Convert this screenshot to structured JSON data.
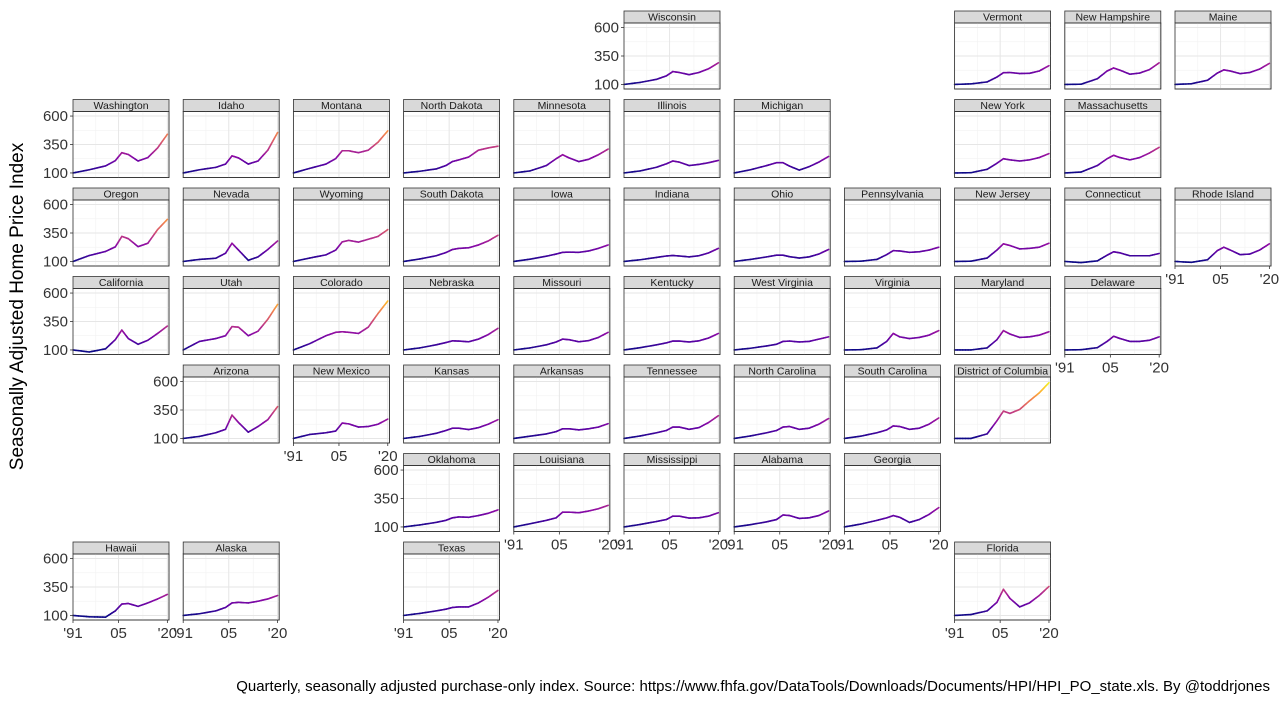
{
  "chart_data": {
    "type": "line",
    "layout": "geofacet small multiples by US state",
    "ylabel": "Seasonally Adjusted Home Price Index",
    "caption": "Quarterly, seasonally adjusted purchase-only index. Source: https://www.fhfa.gov/DataTools/Downloads/Documents/HPI/HPI_PO_state.xls. By @toddrjones",
    "x_ticks": [
      "'91",
      "05",
      "'20"
    ],
    "x_tick_values": [
      1991,
      2005,
      2020
    ],
    "y_ticks": [
      "100",
      "350",
      "600"
    ],
    "y_tick_values": [
      100,
      350,
      600
    ],
    "xlim": [
      1991,
      2020.5
    ],
    "ylim": [
      60,
      640
    ],
    "color_scale": "plasma (line colored by index value)",
    "color_range": [
      100,
      600
    ],
    "colors": {
      "low": "#0d0887",
      "mid": "#cc4778",
      "high": "#f0f921"
    },
    "key_years": [
      1991,
      1996,
      2001,
      2004,
      2006,
      2008,
      2011,
      2014,
      2017,
      2020
    ],
    "series": [
      {
        "name": "Wisconsin",
        "row": 0,
        "col": 5,
        "values": [
          100,
          118,
          145,
          175,
          213,
          205,
          186,
          205,
          238,
          290
        ]
      },
      {
        "name": "Vermont",
        "row": 0,
        "col": 8,
        "values": [
          100,
          105,
          122,
          165,
          203,
          205,
          196,
          198,
          218,
          265
        ]
      },
      {
        "name": "New Hampshire",
        "row": 0,
        "col": 9,
        "values": [
          100,
          102,
          150,
          218,
          245,
          225,
          190,
          200,
          230,
          290
        ]
      },
      {
        "name": "Maine",
        "row": 0,
        "col": 10,
        "values": [
          100,
          106,
          137,
          200,
          228,
          218,
          195,
          205,
          235,
          285
        ]
      },
      {
        "name": "Washington",
        "row": 1,
        "col": 0,
        "values": [
          100,
          128,
          162,
          208,
          278,
          262,
          205,
          235,
          320,
          440
        ]
      },
      {
        "name": "Idaho",
        "row": 1,
        "col": 1,
        "values": [
          100,
          128,
          149,
          178,
          250,
          232,
          178,
          205,
          300,
          455
        ]
      },
      {
        "name": "Montana",
        "row": 1,
        "col": 2,
        "values": [
          100,
          140,
          178,
          226,
          295,
          295,
          278,
          300,
          370,
          470
        ]
      },
      {
        "name": "North Dakota",
        "row": 1,
        "col": 3,
        "values": [
          100,
          115,
          135,
          165,
          200,
          215,
          240,
          300,
          320,
          335
        ]
      },
      {
        "name": "Minnesota",
        "row": 1,
        "col": 4,
        "values": [
          100,
          118,
          165,
          225,
          260,
          232,
          200,
          220,
          260,
          310
        ]
      },
      {
        "name": "Illinois",
        "row": 1,
        "col": 5,
        "values": [
          100,
          118,
          150,
          180,
          205,
          195,
          165,
          175,
          190,
          210
        ]
      },
      {
        "name": "Michigan",
        "row": 1,
        "col": 6,
        "values": [
          100,
          128,
          165,
          190,
          190,
          160,
          125,
          155,
          195,
          245
        ]
      },
      {
        "name": "New York",
        "row": 1,
        "col": 8,
        "values": [
          100,
          102,
          132,
          185,
          225,
          215,
          205,
          215,
          235,
          270
        ]
      },
      {
        "name": "Massachusetts",
        "row": 1,
        "col": 9,
        "values": [
          100,
          108,
          165,
          225,
          255,
          235,
          215,
          235,
          275,
          325
        ]
      },
      {
        "name": "Oregon",
        "row": 2,
        "col": 0,
        "values": [
          100,
          152,
          188,
          228,
          320,
          300,
          230,
          260,
          380,
          470
        ]
      },
      {
        "name": "Nevada",
        "row": 2,
        "col": 1,
        "values": [
          100,
          118,
          128,
          172,
          260,
          200,
          110,
          140,
          205,
          280
        ]
      },
      {
        "name": "Wyoming",
        "row": 2,
        "col": 2,
        "values": [
          100,
          130,
          158,
          200,
          272,
          285,
          270,
          295,
          320,
          380
        ]
      },
      {
        "name": "South Dakota",
        "row": 2,
        "col": 3,
        "values": [
          100,
          122,
          150,
          178,
          205,
          215,
          220,
          245,
          280,
          330
        ]
      },
      {
        "name": "Iowa",
        "row": 2,
        "col": 4,
        "values": [
          100,
          120,
          146,
          165,
          180,
          182,
          180,
          192,
          215,
          245
        ]
      },
      {
        "name": "Indiana",
        "row": 2,
        "col": 5,
        "values": [
          100,
          115,
          135,
          148,
          152,
          148,
          140,
          150,
          175,
          215
        ]
      },
      {
        "name": "Ohio",
        "row": 2,
        "col": 6,
        "values": [
          100,
          118,
          140,
          155,
          155,
          142,
          130,
          140,
          165,
          205
        ]
      },
      {
        "name": "Pennsylvania",
        "row": 2,
        "col": 7,
        "values": [
          100,
          102,
          118,
          160,
          195,
          192,
          180,
          185,
          200,
          225
        ]
      },
      {
        "name": "New Jersey",
        "row": 2,
        "col": 8,
        "values": [
          100,
          102,
          130,
          200,
          255,
          240,
          210,
          215,
          225,
          260
        ]
      },
      {
        "name": "Connecticut",
        "row": 2,
        "col": 9,
        "values": [
          100,
          90,
          105,
          155,
          185,
          175,
          150,
          150,
          150,
          170
        ]
      },
      {
        "name": "Rhode Island",
        "row": 2,
        "col": 10,
        "values": [
          100,
          92,
          115,
          195,
          225,
          200,
          160,
          165,
          200,
          255
        ]
      },
      {
        "name": "California",
        "row": 3,
        "col": 0,
        "values": [
          100,
          82,
          110,
          190,
          275,
          200,
          150,
          185,
          245,
          310
        ]
      },
      {
        "name": "Utah",
        "row": 3,
        "col": 1,
        "values": [
          100,
          175,
          200,
          225,
          305,
          300,
          225,
          265,
          370,
          500
        ]
      },
      {
        "name": "Colorado",
        "row": 3,
        "col": 2,
        "values": [
          100,
          155,
          225,
          255,
          260,
          255,
          245,
          300,
          420,
          530
        ]
      },
      {
        "name": "Nebraska",
        "row": 3,
        "col": 3,
        "values": [
          100,
          118,
          145,
          165,
          180,
          178,
          172,
          195,
          235,
          290
        ]
      },
      {
        "name": "Missouri",
        "row": 3,
        "col": 4,
        "values": [
          100,
          118,
          145,
          170,
          195,
          190,
          172,
          182,
          210,
          255
        ]
      },
      {
        "name": "Kentucky",
        "row": 3,
        "col": 5,
        "values": [
          100,
          120,
          145,
          162,
          178,
          178,
          170,
          180,
          205,
          245
        ]
      },
      {
        "name": "West Virginia",
        "row": 3,
        "col": 6,
        "values": [
          100,
          115,
          135,
          150,
          175,
          178,
          170,
          175,
          195,
          215
        ]
      },
      {
        "name": "Virginia",
        "row": 3,
        "col": 7,
        "values": [
          100,
          102,
          118,
          175,
          245,
          215,
          200,
          210,
          230,
          270
        ]
      },
      {
        "name": "Maryland",
        "row": 3,
        "col": 8,
        "values": [
          100,
          100,
          118,
          190,
          270,
          240,
          210,
          215,
          230,
          260
        ]
      },
      {
        "name": "Delaware",
        "row": 3,
        "col": 9,
        "values": [
          100,
          102,
          120,
          175,
          220,
          200,
          175,
          175,
          185,
          215
        ]
      },
      {
        "name": "Arizona",
        "row": 4,
        "col": 1,
        "values": [
          100,
          118,
          150,
          180,
          305,
          240,
          155,
          205,
          265,
          380
        ]
      },
      {
        "name": "New Mexico",
        "row": 4,
        "col": 2,
        "values": [
          100,
          135,
          150,
          165,
          235,
          228,
          200,
          205,
          225,
          270
        ]
      },
      {
        "name": "Kansas",
        "row": 4,
        "col": 3,
        "values": [
          100,
          118,
          145,
          170,
          190,
          190,
          178,
          195,
          225,
          265
        ]
      },
      {
        "name": "Arkansas",
        "row": 4,
        "col": 4,
        "values": [
          100,
          120,
          140,
          160,
          185,
          185,
          175,
          185,
          200,
          230
        ]
      },
      {
        "name": "Tennessee",
        "row": 4,
        "col": 5,
        "values": [
          100,
          122,
          150,
          170,
          200,
          200,
          180,
          195,
          240,
          300
        ]
      },
      {
        "name": "North Carolina",
        "row": 4,
        "col": 6,
        "values": [
          100,
          122,
          150,
          170,
          200,
          205,
          180,
          190,
          225,
          275
        ]
      },
      {
        "name": "South Carolina",
        "row": 4,
        "col": 7,
        "values": [
          100,
          120,
          150,
          175,
          210,
          205,
          180,
          190,
          225,
          280
        ]
      },
      {
        "name": "District of Columbia",
        "row": 4,
        "col": 8,
        "values": [
          100,
          100,
          140,
          255,
          340,
          320,
          355,
          430,
          500,
          590
        ]
      },
      {
        "name": "Oklahoma",
        "row": 5,
        "col": 3,
        "values": [
          100,
          118,
          140,
          158,
          180,
          188,
          185,
          200,
          220,
          250
        ]
      },
      {
        "name": "Louisiana",
        "row": 5,
        "col": 4,
        "values": [
          100,
          128,
          158,
          180,
          230,
          230,
          225,
          240,
          260,
          290
        ]
      },
      {
        "name": "Mississippi",
        "row": 5,
        "col": 5,
        "values": [
          100,
          122,
          148,
          165,
          195,
          195,
          178,
          180,
          195,
          225
        ]
      },
      {
        "name": "Alabama",
        "row": 5,
        "col": 6,
        "values": [
          100,
          120,
          145,
          165,
          205,
          200,
          175,
          180,
          200,
          240
        ]
      },
      {
        "name": "Georgia",
        "row": 5,
        "col": 7,
        "values": [
          100,
          125,
          158,
          180,
          200,
          185,
          140,
          165,
          210,
          270
        ]
      },
      {
        "name": "Hawaii",
        "row": 6,
        "col": 0,
        "values": [
          100,
          88,
          85,
          140,
          200,
          205,
          180,
          210,
          245,
          285
        ]
      },
      {
        "name": "Alaska",
        "row": 6,
        "col": 1,
        "values": [
          100,
          115,
          140,
          170,
          210,
          215,
          210,
          225,
          245,
          275
        ]
      },
      {
        "name": "Texas",
        "row": 6,
        "col": 3,
        "values": [
          100,
          118,
          140,
          155,
          170,
          175,
          175,
          210,
          260,
          320
        ]
      },
      {
        "name": "Florida",
        "row": 6,
        "col": 8,
        "values": [
          100,
          108,
          140,
          215,
          330,
          250,
          175,
          210,
          275,
          355
        ]
      }
    ],
    "y_axis_rows": [
      {
        "row": 0,
        "col": 5
      },
      {
        "row": 1,
        "col": 0
      },
      {
        "row": 2,
        "col": 0
      },
      {
        "row": 3,
        "col": 0
      },
      {
        "row": 4,
        "col": 1
      },
      {
        "row": 5,
        "col": 3
      },
      {
        "row": 6,
        "col": 0
      }
    ],
    "x_axis_panels": [
      {
        "row": 6,
        "col": 0
      },
      {
        "row": 6,
        "col": 1
      },
      {
        "row": 4,
        "col": 2
      },
      {
        "row": 6,
        "col": 3
      },
      {
        "row": 5,
        "col": 4
      },
      {
        "row": 5,
        "col": 5
      },
      {
        "row": 5,
        "col": 6
      },
      {
        "row": 5,
        "col": 7
      },
      {
        "row": 6,
        "col": 8
      },
      {
        "row": 3,
        "col": 9
      },
      {
        "row": 2,
        "col": 10
      }
    ]
  }
}
